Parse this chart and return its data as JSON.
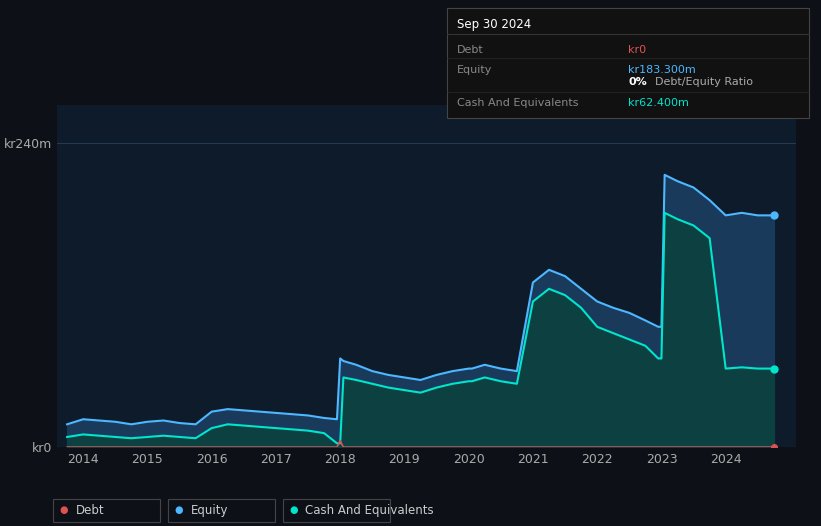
{
  "bg_color": "#0d1117",
  "plot_bg_color": "#0d1b2a",
  "grid_color": "#253a50",
  "equity_color": "#4db8ff",
  "equity_fill": "#1a3a5c",
  "debt_color": "#e05252",
  "cash_color": "#00e5cc",
  "cash_fill": "#0d4040",
  "ytick_labels": [
    "kr0",
    "kr240m"
  ],
  "ytick_vals": [
    0,
    240
  ],
  "xtick_labels": [
    "2014",
    "2015",
    "2016",
    "2017",
    "2018",
    "2019",
    "2020",
    "2021",
    "2022",
    "2023",
    "2024"
  ],
  "xtick_vals": [
    2014,
    2015,
    2016,
    2017,
    2018,
    2019,
    2020,
    2021,
    2022,
    2023,
    2024
  ],
  "ylim": [
    0,
    270
  ],
  "xlim": [
    2013.6,
    2025.1
  ],
  "tooltip": {
    "date": "Sep 30 2024",
    "rows": [
      {
        "label": "Debt",
        "value": "kr0",
        "value_color": "#e05252"
      },
      {
        "label": "Equity",
        "value": "kr183.300m",
        "value_color": "#4db8ff"
      },
      {
        "label": "",
        "value": "0% Debt/Equity Ratio",
        "value_color": "#cccccc",
        "bold_prefix": "0%"
      },
      {
        "label": "Cash And Equivalents",
        "value": "kr62.400m",
        "value_color": "#00e5cc"
      }
    ]
  },
  "legend": [
    {
      "label": "Debt",
      "color": "#e05252"
    },
    {
      "label": "Equity",
      "color": "#4db8ff"
    },
    {
      "label": "Cash And Equivalents",
      "color": "#00e5cc"
    }
  ],
  "years": [
    2013.75,
    2014.0,
    2014.25,
    2014.5,
    2014.75,
    2015.0,
    2015.25,
    2015.5,
    2015.75,
    2016.0,
    2016.25,
    2016.5,
    2016.75,
    2017.0,
    2017.25,
    2017.5,
    2017.75,
    2017.95,
    2018.0,
    2018.05,
    2018.25,
    2018.5,
    2018.75,
    2019.0,
    2019.25,
    2019.5,
    2019.75,
    2020.0,
    2020.05,
    2020.25,
    2020.5,
    2020.75,
    2021.0,
    2021.25,
    2021.5,
    2021.75,
    2022.0,
    2022.25,
    2022.5,
    2022.75,
    2022.95,
    2023.0,
    2023.05,
    2023.25,
    2023.5,
    2023.75,
    2024.0,
    2024.25,
    2024.5,
    2024.75
  ],
  "equity": [
    18,
    22,
    21,
    20,
    18,
    20,
    21,
    19,
    18,
    28,
    30,
    29,
    28,
    27,
    26,
    25,
    23,
    22,
    70,
    68,
    65,
    60,
    57,
    55,
    53,
    57,
    60,
    62,
    62,
    65,
    62,
    60,
    130,
    140,
    135,
    125,
    115,
    110,
    106,
    100,
    95,
    95,
    215,
    210,
    205,
    195,
    183,
    185,
    183,
    183
  ],
  "cash": [
    8,
    10,
    9,
    8,
    7,
    8,
    9,
    8,
    7,
    15,
    18,
    17,
    16,
    15,
    14,
    13,
    11,
    3,
    3,
    55,
    53,
    50,
    47,
    45,
    43,
    47,
    50,
    52,
    52,
    55,
    52,
    50,
    115,
    125,
    120,
    110,
    95,
    90,
    85,
    80,
    70,
    70,
    185,
    180,
    175,
    165,
    62,
    63,
    62,
    62
  ],
  "debt": [
    0,
    0,
    0,
    0,
    0,
    0,
    0,
    0,
    0,
    0,
    0,
    0,
    0,
    0,
    0,
    0,
    0,
    0,
    5,
    0,
    0,
    0,
    0,
    0,
    0,
    0,
    0,
    0,
    0,
    0,
    0,
    0,
    0,
    0,
    0,
    0,
    0,
    0,
    0,
    0,
    0,
    0,
    0,
    0,
    0,
    0,
    0,
    0,
    0,
    0
  ]
}
